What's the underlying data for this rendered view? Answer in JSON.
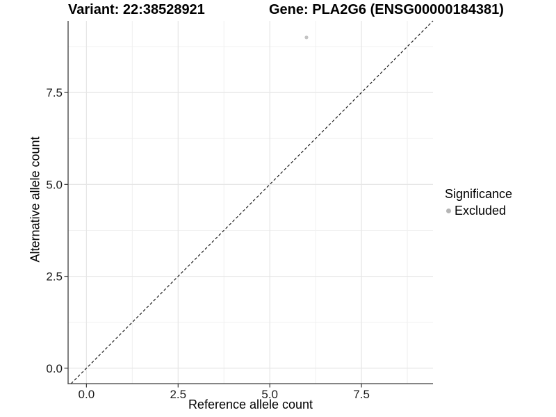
{
  "header": {
    "title_left": "Variant: 22:38528921",
    "title_right": "Gene: PLA2G6 (ENSG00000184381)"
  },
  "legend": {
    "title": "Significance",
    "items": [
      {
        "label": "Excluded",
        "marker": "circle",
        "color": "#b5b5b5"
      }
    ]
  },
  "chart_data": {
    "type": "scatter",
    "xlabel": "Reference allele count",
    "ylabel": "Alternative allele count",
    "xlim": [
      -0.5,
      9.45
    ],
    "ylim": [
      -0.42,
      9.45
    ],
    "x_major_ticks": [
      0.0,
      2.5,
      5.0,
      7.5
    ],
    "y_major_ticks": [
      0.0,
      2.5,
      5.0,
      7.5
    ],
    "x_minor_ticks": [
      1.25,
      3.75,
      6.25,
      8.75
    ],
    "y_minor_ticks": [
      1.25,
      3.75,
      6.25,
      8.75
    ],
    "tick_decimals": 1,
    "grid": true,
    "legend_position": "right",
    "series": [
      {
        "name": "Excluded",
        "color": "#c3c3c3",
        "points": [
          {
            "x": 6,
            "y": 9
          }
        ]
      }
    ],
    "reference_line": {
      "slope": 1,
      "intercept": 0,
      "style": "dashed",
      "color": "#1a1a1a"
    }
  },
  "colors": {
    "background": "#ffffff",
    "axis_line": "#3c3c3c",
    "tick_label": "#1a1a1a",
    "grid_major": "#e6e6e6",
    "grid_minor": "#f0f0f0"
  }
}
